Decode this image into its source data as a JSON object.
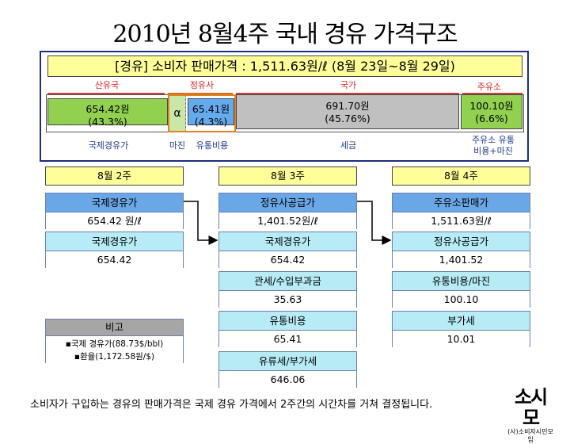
{
  "title": "2010년 8월4주 국내 경유 가격구조",
  "header": "[경유] 소비자 판매가격 : 1,511.63원/ℓ (8월 23일~8월 29일)",
  "segments": {
    "top_labels": [
      "산유국",
      "정유사",
      "국가",
      "주유소"
    ],
    "crude": {
      "value": "654.42원",
      "pct": "(43.3%)",
      "bottom": "국제경유가",
      "color": "#92d050"
    },
    "alpha": {
      "symbol": "α",
      "bottom": "마진"
    },
    "refiner": {
      "value": "65.41원",
      "pct": "(4.3%)",
      "bottom": "유통비용",
      "color": "#66aaee"
    },
    "tax": {
      "value": "691.70원",
      "pct": "(45.76%)",
      "bottom": "세금",
      "color": "#c0c0c0"
    },
    "station": {
      "value": "100.10원",
      "pct": "(6.6%)",
      "bottom": "주유소 유통\n비용+마진",
      "color": "#92d050"
    }
  },
  "weeks": [
    "8월 2주",
    "8월 3주",
    "8월 4주"
  ],
  "col1": [
    {
      "label": "국제경유가",
      "value": "654.42 원/ℓ"
    },
    {
      "label": "국제경유가",
      "value": "654.42"
    }
  ],
  "col2": [
    {
      "label": "정유사공급가",
      "value": "1,401.52원/ℓ"
    },
    {
      "label": "국제경유가",
      "value": "654.42"
    },
    {
      "label": "관세/수입부과금",
      "value": "35.63"
    },
    {
      "label": "유통비용",
      "value": "65.41"
    },
    {
      "label": "유류세/부가세",
      "value": "646.06"
    }
  ],
  "col3": [
    {
      "label": "주유소판매가",
      "value": "1,511.63원/ℓ"
    },
    {
      "label": "정유사공급가",
      "value": "1,401.52"
    },
    {
      "label": "유통비용/마진",
      "value": "100.10"
    },
    {
      "label": "부가세",
      "value": "10.01"
    }
  ],
  "note": {
    "heading": "비고",
    "line1": "▪국제 경유가(88.73$/bbl)",
    "line2": "▪환율(1,172.58원/$)"
  },
  "footer": "소비자가 구입하는 경유의 판매가격은 국제 경유 가격에서 2주간의 시간차를 거쳐 결정됩니다.",
  "logo": {
    "main": "소시모",
    "sub": "(사)소비자시민모임"
  }
}
